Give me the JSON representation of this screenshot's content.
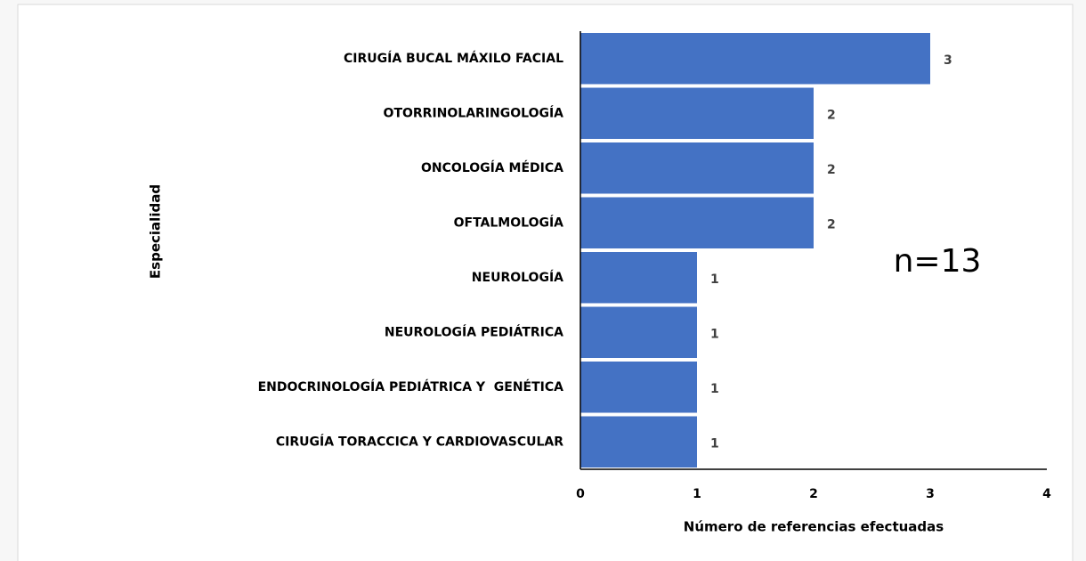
{
  "chart_data": {
    "type": "bar",
    "orientation": "horizontal",
    "categories": [
      "CIRUGÍA BUCAL MÁXILO FACIAL",
      "OTORRINOLARINGOLOGÍA",
      "ONCOLOGÍA MÉDICA",
      "OFTALMOLOGÍA",
      "NEUROLOGÍA",
      "NEUROLOGÍA PEDIÁTRICA",
      "ENDOCRINOLOGÍA PEDIÁTRICA Y  GENÉTICA",
      "CIRUGÍA TORACCICA Y CARDIOVASCULAR"
    ],
    "values": [
      3,
      2,
      2,
      2,
      1,
      1,
      1,
      1
    ],
    "color": "#4472c4",
    "xlim": [
      0,
      4
    ],
    "xticks": [
      0,
      1,
      2,
      3,
      4
    ],
    "grid": false,
    "x_label": "Número de referencias efectuadas",
    "y_label": "Especialidad",
    "annotation": "n=13"
  }
}
